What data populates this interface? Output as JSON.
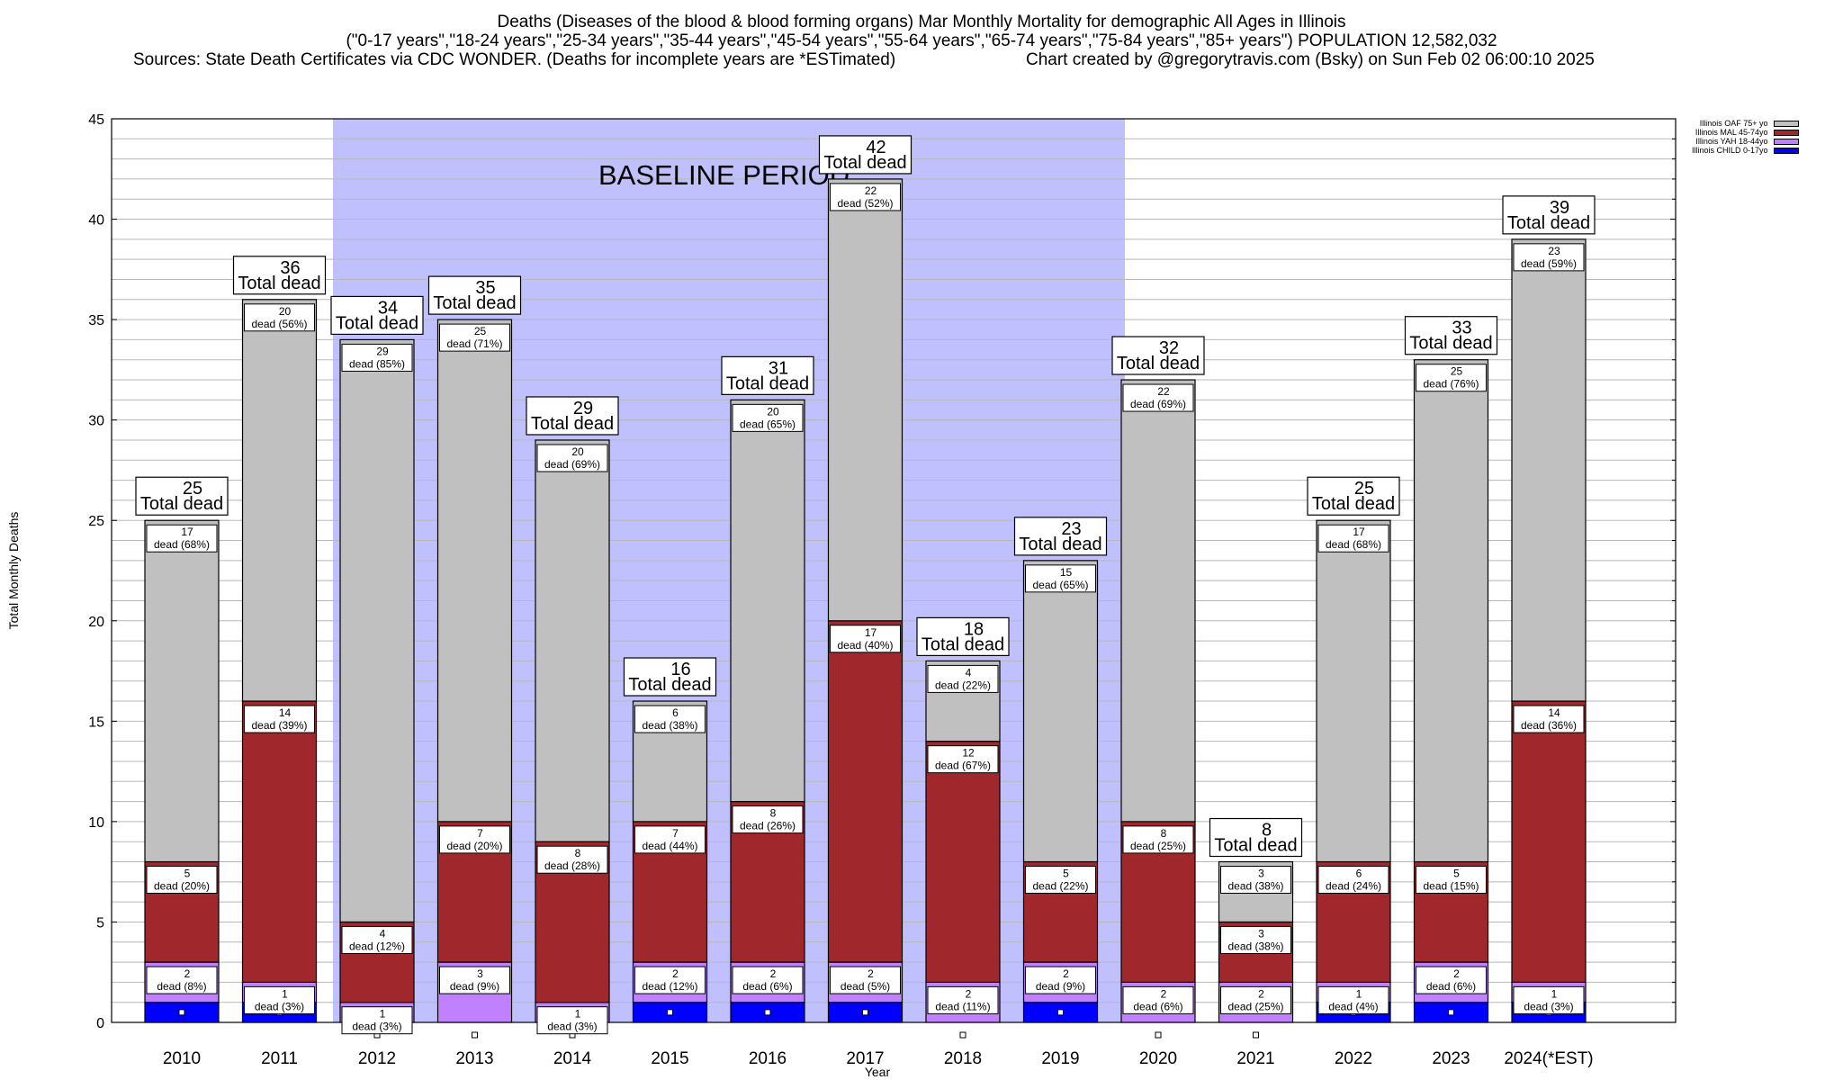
{
  "header": {
    "title_line1": "Deaths (Diseases of the blood & blood forming organs) Mar Monthly Mortality for demographic All Ages in Illinois",
    "title_line2": "(\"0-17 years\",\"18-24 years\",\"25-34 years\",\"35-44 years\",\"45-54 years\",\"55-64 years\",\"65-74 years\",\"75-84 years\",\"85+ years\") POPULATION 12,582,032",
    "sources": "Sources: State Death Certificates via CDC WONDER. (Deaths for incomplete years are *ESTimated)",
    "credit": "Chart created by @gregorytravis.com (Bsky) on Sun Feb 02 06:00:10 2025"
  },
  "chart_data": {
    "type": "bar",
    "stacked": true,
    "title": "Deaths (Diseases of the blood & blood forming organs) Mar Monthly Mortality for demographic All Ages in Illinois",
    "xlabel": "Year",
    "ylabel": "Total Monthly Deaths",
    "ylim": [
      0,
      45
    ],
    "yticks": [
      0,
      5,
      10,
      15,
      20,
      25,
      30,
      35,
      40,
      45
    ],
    "minor_grid_step": 1,
    "grid": true,
    "legend_position": "top-right",
    "categories": [
      "2010",
      "2011",
      "2012",
      "2013",
      "2014",
      "2015",
      "2016",
      "2017",
      "2018",
      "2019",
      "2020",
      "2021",
      "2022",
      "2023",
      "2024(*EST)"
    ],
    "baseline_period": {
      "label": "BASELINE PERIOD",
      "start": "2012",
      "end": "2019",
      "color": "#c0c0ff"
    },
    "total_label_suffix": "Total dead",
    "segment_label_word": "dead",
    "totals": [
      25,
      36,
      34,
      35,
      29,
      16,
      31,
      42,
      18,
      23,
      32,
      8,
      25,
      33,
      39
    ],
    "series": [
      {
        "name": "Illinois CHILD 0-17yo",
        "color": "#0000ff",
        "values": [
          1,
          1,
          0,
          0,
          0,
          1,
          1,
          1,
          0,
          1,
          0,
          0,
          1,
          1,
          1
        ],
        "pct": [
          null,
          null,
          null,
          null,
          null,
          null,
          null,
          null,
          null,
          null,
          null,
          null,
          null,
          null,
          null
        ]
      },
      {
        "name": "Illinois YAH 18-44yo",
        "color": "#c080ff",
        "values": [
          2,
          1,
          1,
          3,
          1,
          2,
          2,
          2,
          2,
          2,
          2,
          2,
          1,
          2,
          1
        ],
        "pct": [
          "8%",
          "3%",
          "3%",
          "9%",
          "3%",
          "12%",
          "6%",
          "5%",
          "11%",
          "9%",
          "6%",
          "25%",
          "4%",
          "6%",
          "3%"
        ]
      },
      {
        "name": "Illinois MAL 45-74yo",
        "color": "#a0282c",
        "values": [
          5,
          14,
          4,
          7,
          8,
          7,
          8,
          17,
          12,
          5,
          8,
          3,
          6,
          5,
          14
        ],
        "pct": [
          "20%",
          "39%",
          "12%",
          "20%",
          "28%",
          "44%",
          "26%",
          "40%",
          "67%",
          "22%",
          "25%",
          "38%",
          "24%",
          "15%",
          "36%"
        ]
      },
      {
        "name": "Illinois OAF 75+ yo",
        "color": "#c0c0c0",
        "values": [
          17,
          20,
          29,
          25,
          20,
          6,
          20,
          22,
          4,
          15,
          22,
          3,
          17,
          25,
          23
        ],
        "pct": [
          "68%",
          "56%",
          "85%",
          "71%",
          "69%",
          "38%",
          "65%",
          "52%",
          "22%",
          "65%",
          "69%",
          "38%",
          "68%",
          "76%",
          "59%"
        ]
      }
    ]
  },
  "legend": {
    "items": [
      {
        "label": "Illinois OAF 75+ yo",
        "color": "#c0c0c0"
      },
      {
        "label": "Illinois MAL 45-74yo",
        "color": "#a0282c"
      },
      {
        "label": "Illinois YAH 18-44yo",
        "color": "#c080ff"
      },
      {
        "label": "Illinois CHILD 0-17yo",
        "color": "#0000ff"
      }
    ]
  }
}
